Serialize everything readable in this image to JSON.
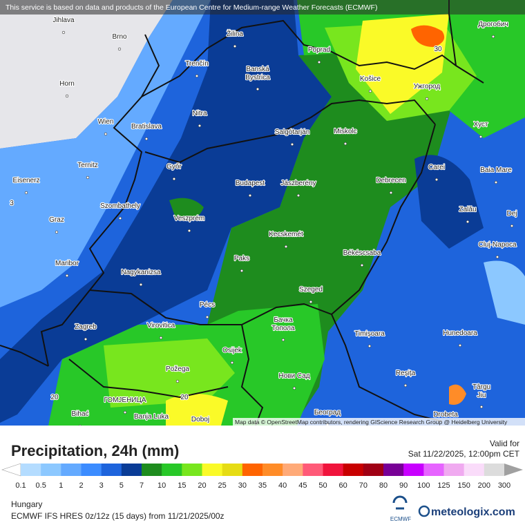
{
  "header": {
    "notice": "This service is based on data and products of the European Centre for Medium-range Weather Forecasts (ECMWF)",
    "attribution": "Map data © OpenStreetMap contributors, rendering GIScience Research Group @ Heidelberg University"
  },
  "map": {
    "cities": [
      [
        "Jihlava"
      ],
      [
        "Brno"
      ],
      [
        "Žilina"
      ],
      [
        "Poprad"
      ],
      [
        "Дрогобич"
      ],
      [
        "Trenčín"
      ],
      [
        "Banská",
        "Bystrica"
      ],
      [
        "Košice"
      ],
      [
        "Ужгород"
      ],
      [
        "Horn"
      ],
      [
        "Nitra"
      ],
      [
        "Wien"
      ],
      [
        "Bratislava"
      ],
      [
        "Salgótarján"
      ],
      [
        "Miskolc"
      ],
      [
        "Хуст"
      ],
      [
        "Ternitz"
      ],
      [
        "Győr"
      ],
      [
        "Carei"
      ],
      [
        "Baia Mare"
      ],
      [
        "Eisenerz"
      ],
      [
        "Budapest"
      ],
      [
        "Jászberény"
      ],
      [
        "Debrecen"
      ],
      [
        "Szombathely"
      ],
      [
        "Zalău"
      ],
      [
        "Veszprém"
      ],
      [
        "Graz"
      ],
      [
        "Dej"
      ],
      [
        "Kecskemét"
      ],
      [
        "Cluj-Napoca"
      ],
      [
        "Békéscsaba"
      ],
      [
        "Paks"
      ],
      [
        "Maribor"
      ],
      [
        "Nagykanizsa"
      ],
      [
        "Szeged"
      ],
      [
        "Pécs"
      ],
      [
        "Бачка",
        "Топола"
      ],
      [
        "Virovitica"
      ],
      [
        "Zagreb"
      ],
      [
        "Timișoara"
      ],
      [
        "Hunedoara"
      ],
      [
        "Osijek"
      ],
      [
        "Požega"
      ],
      [
        "Reșița"
      ],
      [
        "Нови Сад"
      ],
      [
        "Târgu",
        "Jiu"
      ],
      [
        "ГОМЈЕНИЦА"
      ],
      [
        "Bihać"
      ],
      [
        "Banja Luka"
      ],
      [
        "Doboj"
      ],
      [
        "Београд"
      ],
      [
        "Drobeta"
      ]
    ],
    "contour_labels": [
      "20",
      "20",
      "30",
      "3"
    ]
  },
  "footer": {
    "title": "Precipitation, 24h (mm)",
    "valid_label": "Valid for",
    "valid_time": "Sat 11/22/2025, 12:00pm CET",
    "region": "Hungary",
    "model": "ECMWF IFS HRES 0z/12z (15 days) from 11/21/2025/00z",
    "ecmwf": "ECMWF",
    "brand": "meteologix.com"
  },
  "legend": {
    "ticks": [
      0.1,
      0.5,
      1,
      2,
      3,
      5,
      7,
      10,
      15,
      20,
      25,
      30,
      35,
      40,
      45,
      50,
      60,
      70,
      80,
      90,
      100,
      125,
      150,
      200,
      300
    ],
    "colors": [
      "#ffffff",
      "#b4dcff",
      "#8cc8ff",
      "#64aaff",
      "#3c8cff",
      "#1e64dc",
      "#0a3c96",
      "#1e8c1e",
      "#28c828",
      "#78e61e",
      "#fafa28",
      "#e6dc14",
      "#ff6400",
      "#ff8c28",
      "#ffaa78",
      "#ff5a78",
      "#f0143c",
      "#c80000",
      "#a00014",
      "#780096",
      "#c800ff",
      "#e664ff",
      "#f0aaf0",
      "#fadcfa",
      "#dcdcdc",
      "#a0a0a0"
    ]
  }
}
